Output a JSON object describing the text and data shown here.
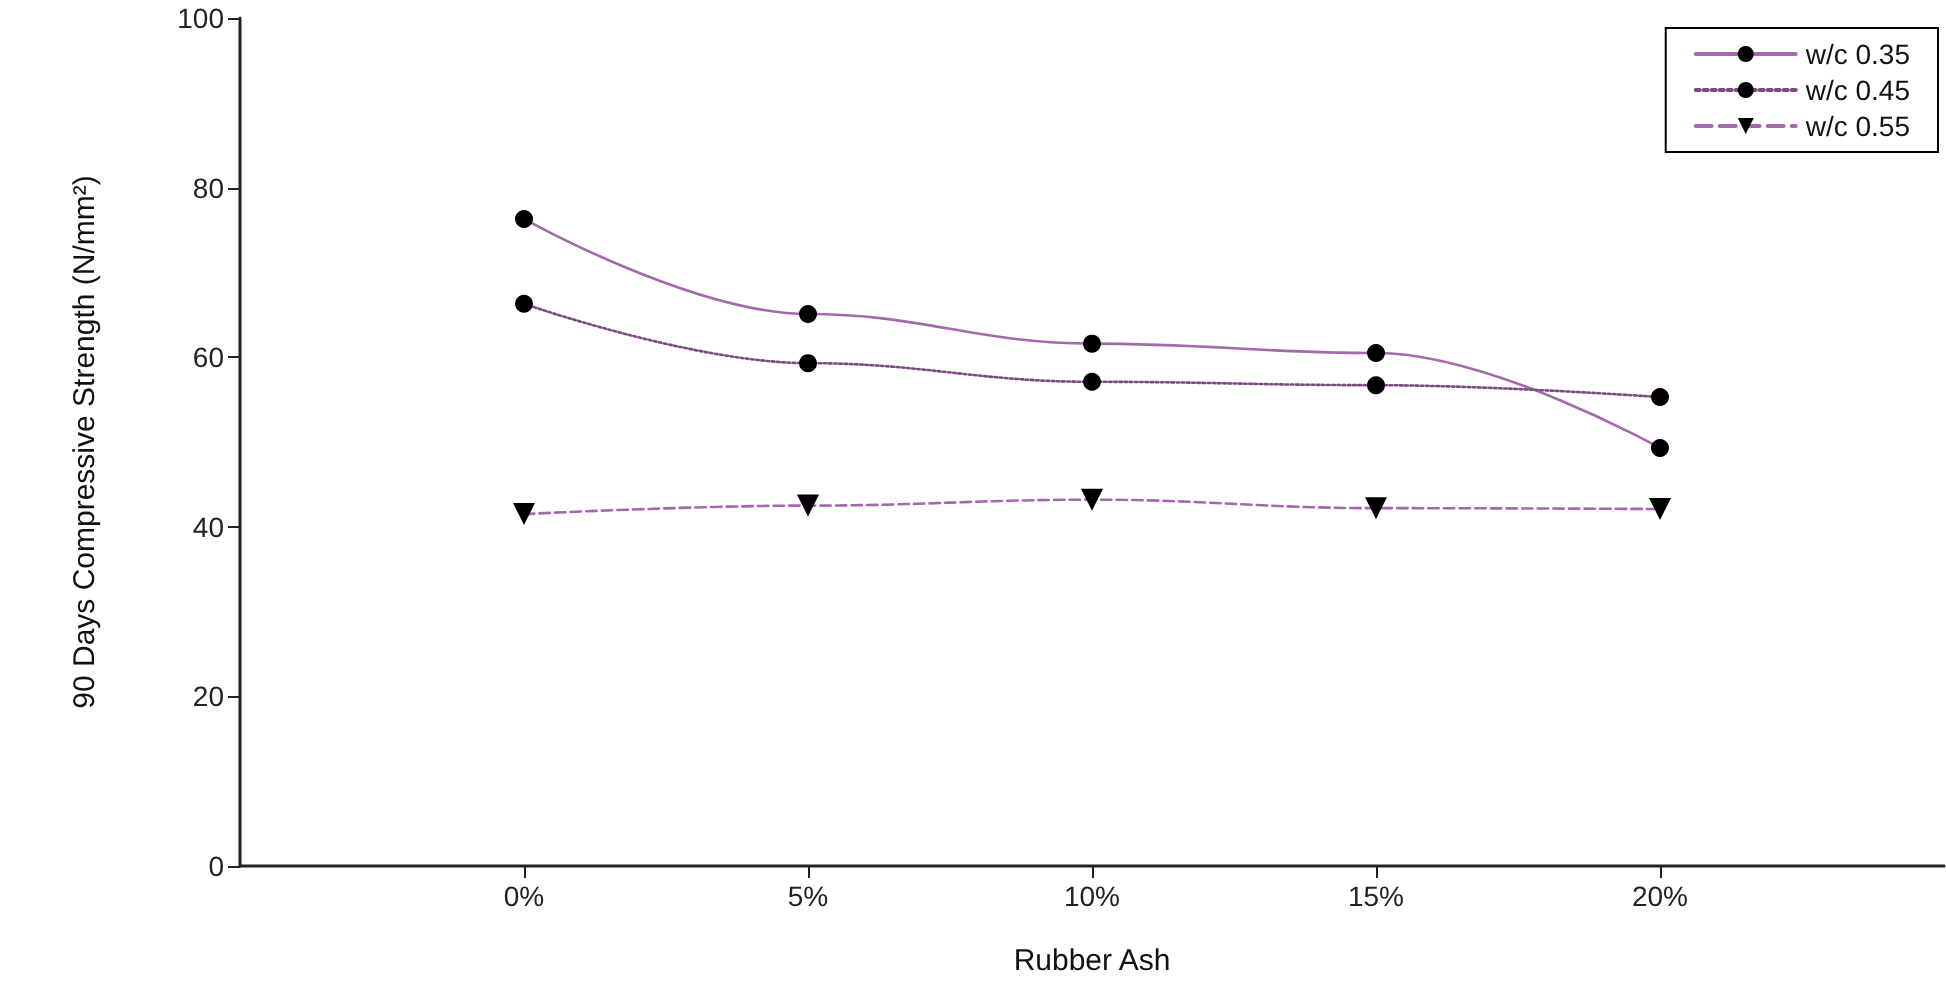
{
  "chart_data": {
    "type": "line",
    "xlabel": "Rubber Ash",
    "ylabel": "90 Days Compressive Strength (N/mm²)",
    "x": [
      0,
      5,
      10,
      15,
      20
    ],
    "xlim": [
      -5,
      25
    ],
    "xticks": [
      {
        "value": 0,
        "label": "0%"
      },
      {
        "value": 5,
        "label": "5%"
      },
      {
        "value": 10,
        "label": "10%"
      },
      {
        "value": 15,
        "label": "15%"
      },
      {
        "value": 20,
        "label": "20%"
      }
    ],
    "ylim": [
      0,
      100
    ],
    "yticks": [
      0,
      20,
      40,
      60,
      80,
      100
    ],
    "grid": false,
    "legend": "top right",
    "series": [
      {
        "name": "w/c 0.35",
        "color": "#a468ad",
        "marker": "circle",
        "line_style": "solid",
        "values": [
          76.3,
          65.1,
          61.6,
          60.5,
          49.3
        ]
      },
      {
        "name": "w/c 0.45",
        "color": "#7a4a80",
        "marker": "circle",
        "line_style": "dotted",
        "values": [
          66.3,
          59.3,
          57.1,
          56.7,
          55.3
        ]
      },
      {
        "name": "w/c 0.55",
        "color": "#a468ad",
        "marker": "triangle",
        "line_style": "dashed",
        "values": [
          41.5,
          42.5,
          43.2,
          42.2,
          42.1
        ]
      }
    ]
  }
}
